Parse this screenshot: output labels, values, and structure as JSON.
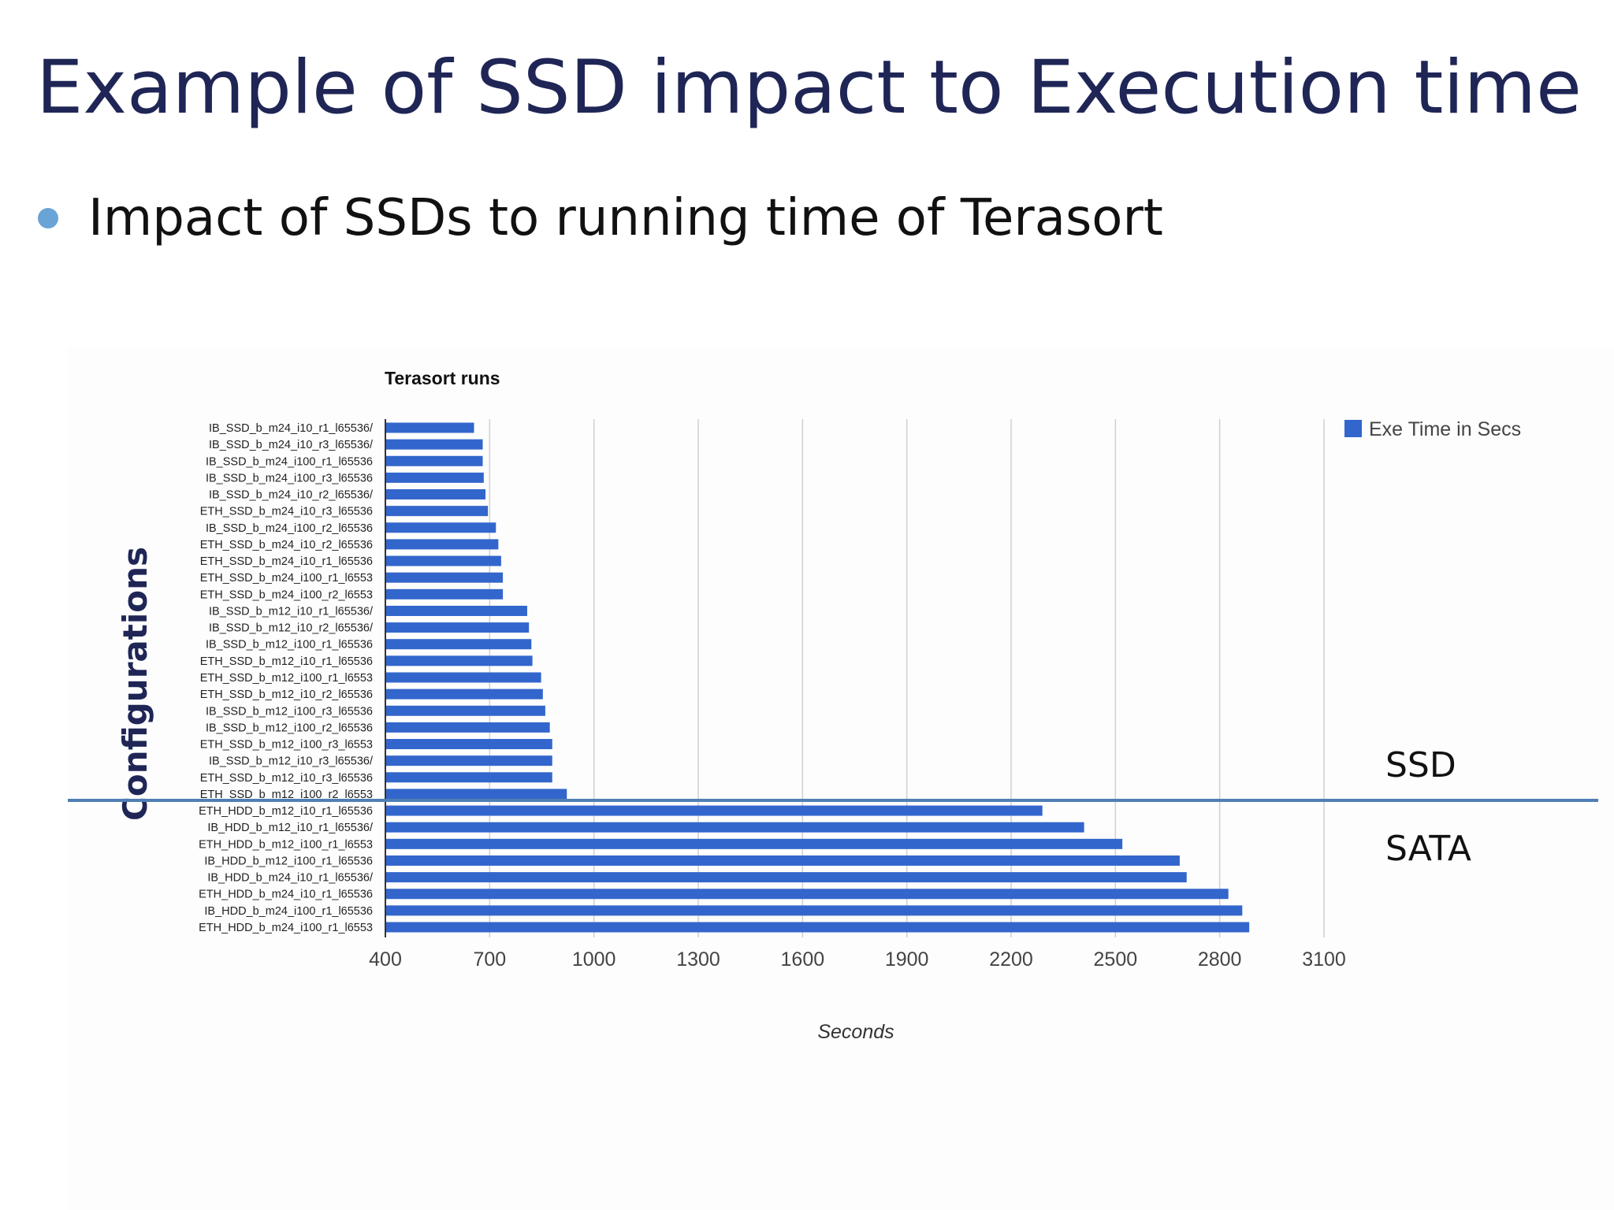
{
  "slide": {
    "title": "Example of SSD impact to Execution time",
    "bullet": "Impact of SSDs to running time of Terasort"
  },
  "colors": {
    "title": "#1f2656",
    "bar": "#3366cc",
    "divider": "#4f7fb5",
    "bullet": "#6aa3d6"
  },
  "chart_data": {
    "type": "bar",
    "orientation": "horizontal",
    "title": "Terasort runs",
    "xlabel": "Seconds",
    "ylabel": "Configurations",
    "xlim": [
      400,
      3100
    ],
    "xticks": [
      "400",
      "700",
      "1000",
      "1300",
      "1600",
      "1900",
      "2200",
      "2500",
      "2800",
      "3100"
    ],
    "grid": true,
    "legend": {
      "position": "top-right",
      "entries": [
        "Exe Time in Secs"
      ]
    },
    "categories": [
      "IB_SSD_b_m24_i10_r1_l65536/",
      "IB_SSD_b_m24_i10_r3_l65536/",
      "IB_SSD_b_m24_i100_r1_l65536",
      "IB_SSD_b_m24_i100_r3_l65536",
      "IB_SSD_b_m24_i10_r2_l65536/",
      "ETH_SSD_b_m24_i10_r3_l65536",
      "IB_SSD_b_m24_i100_r2_l65536",
      "ETH_SSD_b_m24_i10_r2_l65536",
      "ETH_SSD_b_m24_i10_r1_l65536",
      "ETH_SSD_b_m24_i100_r1_l6553",
      "ETH_SSD_b_m24_i100_r2_l6553",
      "IB_SSD_b_m12_i10_r1_l65536/",
      "IB_SSD_b_m12_i10_r2_l65536/",
      "IB_SSD_b_m12_i100_r1_l65536",
      "ETH_SSD_b_m12_i10_r1_l65536",
      "ETH_SSD_b_m12_i100_r1_l6553",
      "ETH_SSD_b_m12_i10_r2_l65536",
      "IB_SSD_b_m12_i100_r3_l65536",
      "IB_SSD_b_m12_i100_r2_l65536",
      "ETH_SSD_b_m12_i100_r3_l6553",
      "IB_SSD_b_m12_i10_r3_l65536/",
      "ETH_SSD_b_m12_i10_r3_l65536",
      "ETH_SSD_b_m12_i100_r2_l6553",
      "ETH_HDD_b_m12_i10_r1_l65536",
      "IB_HDD_b_m12_i10_r1_l65536/",
      "ETH_HDD_b_m12_i100_r1_l6553",
      "IB_HDD_b_m12_i100_r1_l65536",
      "IB_HDD_b_m24_i10_r1_l65536/",
      "ETH_HDD_b_m24_i10_r1_l65536",
      "IB_HDD_b_m24_i100_r1_l65536",
      "ETH_HDD_b_m24_i100_r1_l6553"
    ],
    "series": [
      {
        "name": "Exe Time in Secs",
        "values": [
          655,
          680,
          680,
          683,
          688,
          695,
          718,
          725,
          733,
          738,
          738,
          808,
          813,
          820,
          823,
          848,
          853,
          860,
          873,
          880,
          880,
          880,
          922,
          2290,
          2410,
          2520,
          2685,
          2705,
          2825,
          2865,
          2885
        ]
      }
    ],
    "annotations": {
      "ssd_label": "SSD",
      "sata_label": "SATA"
    }
  }
}
